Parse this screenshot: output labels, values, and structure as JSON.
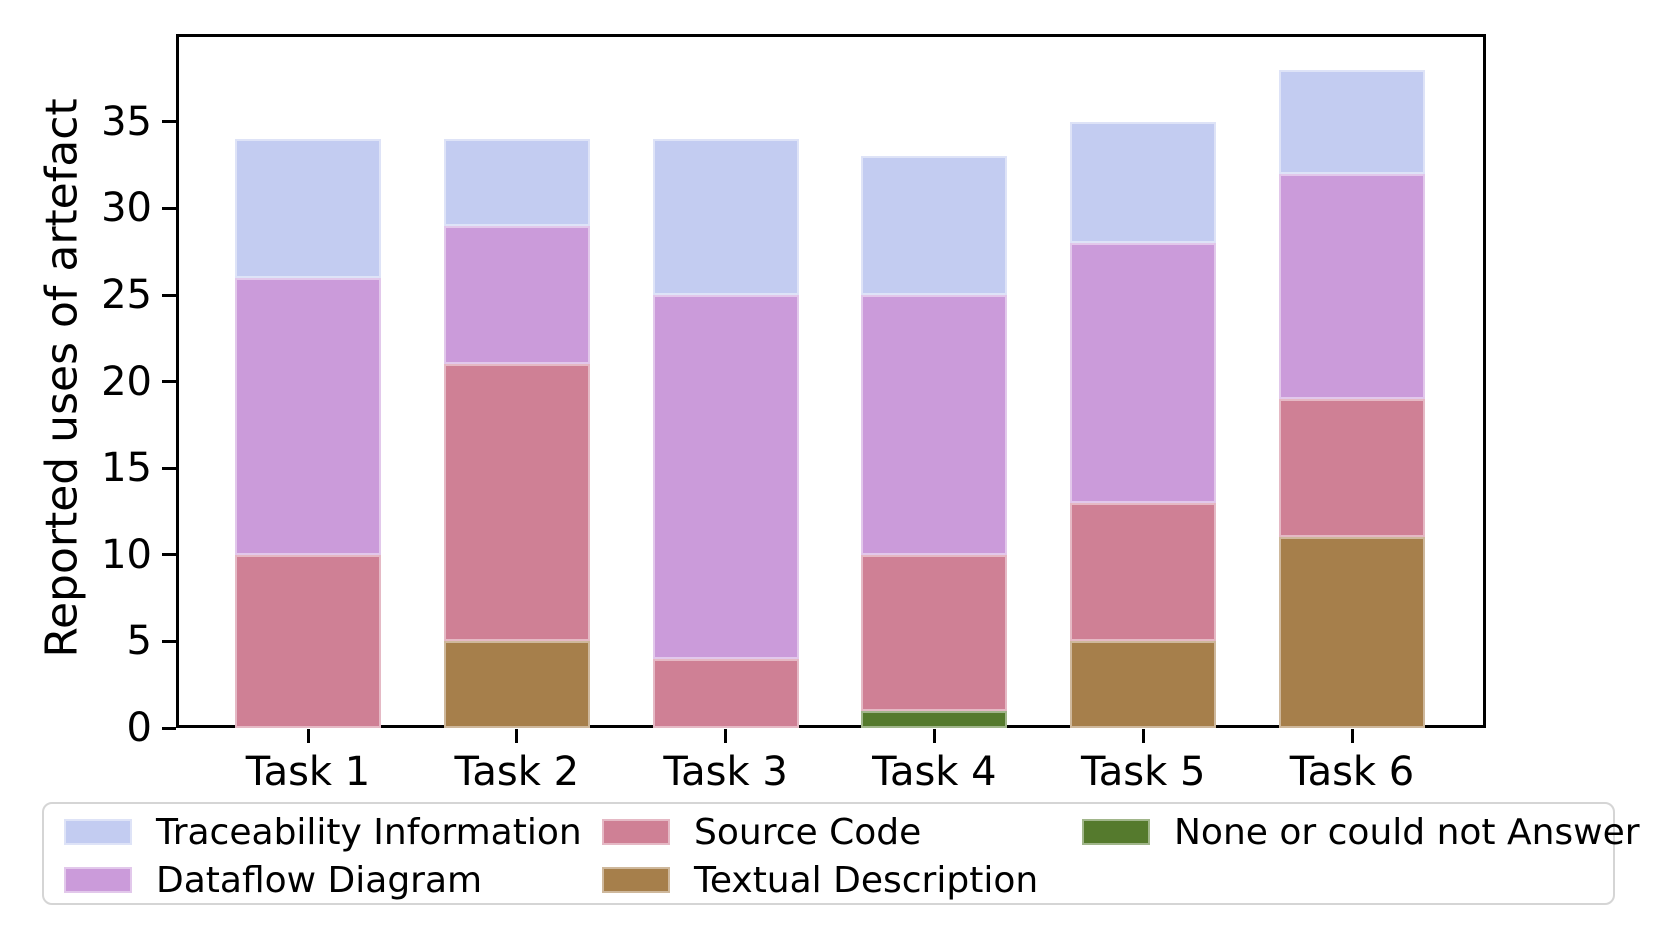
{
  "chart_data": {
    "type": "bar",
    "stacked": true,
    "title": "",
    "xlabel": "",
    "ylabel": "Reported uses of artefact",
    "categories": [
      "Task 1",
      "Task 2",
      "Task 3",
      "Task 4",
      "Task 5",
      "Task 6"
    ],
    "series": [
      {
        "name": "None or could not Answer",
        "color": "#557a2d",
        "values": [
          0,
          0,
          0,
          1,
          0,
          0
        ]
      },
      {
        "name": "Textual Description",
        "color": "#a67f4b",
        "values": [
          0,
          5,
          0,
          0,
          5,
          11
        ]
      },
      {
        "name": "Source Code",
        "color": "#cf8095",
        "values": [
          10,
          16,
          4,
          9,
          8,
          8
        ]
      },
      {
        "name": "Dataflow Diagram",
        "color": "#cb9bda",
        "values": [
          16,
          8,
          21,
          15,
          15,
          13
        ]
      },
      {
        "name": "Traceability Information",
        "color": "#c3ccf1",
        "values": [
          8,
          5,
          9,
          8,
          7,
          6
        ]
      }
    ],
    "stack_order": "bottom-to-top",
    "bar_totals": [
      34,
      34,
      34,
      33,
      35,
      38
    ],
    "yticks": [
      0,
      5,
      10,
      15,
      20,
      25,
      30,
      35
    ],
    "ylim": [
      0,
      40
    ],
    "grid": false,
    "legend": {
      "position": "bottom",
      "columns": [
        [
          "Traceability Information",
          "Dataflow Diagram"
        ],
        [
          "Source Code",
          "Textual Description"
        ],
        [
          "None or could not Answer"
        ]
      ]
    }
  }
}
